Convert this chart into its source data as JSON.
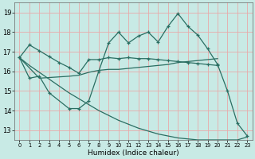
{
  "xlabel": "Humidex (Indice chaleur)",
  "xlim": [
    -0.5,
    23.5
  ],
  "ylim": [
    12.5,
    19.5
  ],
  "yticks": [
    13,
    14,
    15,
    16,
    17,
    18,
    19
  ],
  "xticks": [
    0,
    1,
    2,
    3,
    4,
    5,
    6,
    7,
    8,
    9,
    10,
    11,
    12,
    13,
    14,
    15,
    16,
    17,
    18,
    19,
    20,
    21,
    22,
    23
  ],
  "bg_color": "#c8eae5",
  "grid_color": "#e8aaaa",
  "line_color": "#2a6e62",
  "line1_x": [
    0,
    1,
    2,
    3,
    4,
    5,
    6,
    7,
    8,
    9,
    10,
    11,
    12,
    13,
    14,
    15,
    16,
    17,
    18,
    19,
    20
  ],
  "line1_y": [
    16.7,
    17.35,
    17.05,
    16.75,
    16.45,
    16.2,
    15.9,
    16.6,
    16.6,
    16.7,
    16.65,
    16.7,
    16.65,
    16.65,
    16.6,
    16.55,
    16.5,
    16.45,
    16.4,
    16.35,
    16.3
  ],
  "line2_x": [
    0,
    1,
    2,
    3,
    5,
    6,
    7,
    8,
    9,
    10,
    11,
    12,
    13,
    14,
    15,
    16,
    17,
    18,
    19,
    20,
    21,
    22,
    23
  ],
  "line2_y": [
    16.7,
    15.65,
    15.75,
    14.9,
    14.1,
    14.1,
    14.5,
    16.0,
    17.45,
    18.0,
    17.45,
    17.8,
    18.0,
    17.5,
    18.3,
    18.95,
    18.3,
    17.85,
    17.15,
    16.35,
    15.0,
    13.35,
    12.7
  ],
  "line3_x": [
    0,
    2,
    5,
    6,
    7,
    8,
    9,
    10,
    11,
    12,
    13,
    14,
    15,
    16,
    17,
    18,
    19,
    20
  ],
  "line3_y": [
    16.7,
    15.65,
    15.75,
    15.8,
    15.95,
    16.05,
    16.1,
    16.1,
    16.15,
    16.2,
    16.25,
    16.3,
    16.35,
    16.45,
    16.5,
    16.55,
    16.6,
    16.65
  ],
  "line4_x": [
    0,
    1,
    2,
    3,
    4,
    5,
    6,
    7,
    8,
    9,
    10,
    11,
    12,
    13,
    14,
    15,
    16,
    17,
    18,
    19,
    20,
    21,
    22,
    23
  ],
  "line4_y": [
    16.7,
    16.3,
    15.95,
    15.6,
    15.25,
    14.9,
    14.6,
    14.3,
    14.0,
    13.75,
    13.5,
    13.3,
    13.1,
    12.95,
    12.8,
    12.7,
    12.6,
    12.55,
    12.5,
    12.5,
    12.5,
    12.5,
    12.5,
    12.65
  ]
}
